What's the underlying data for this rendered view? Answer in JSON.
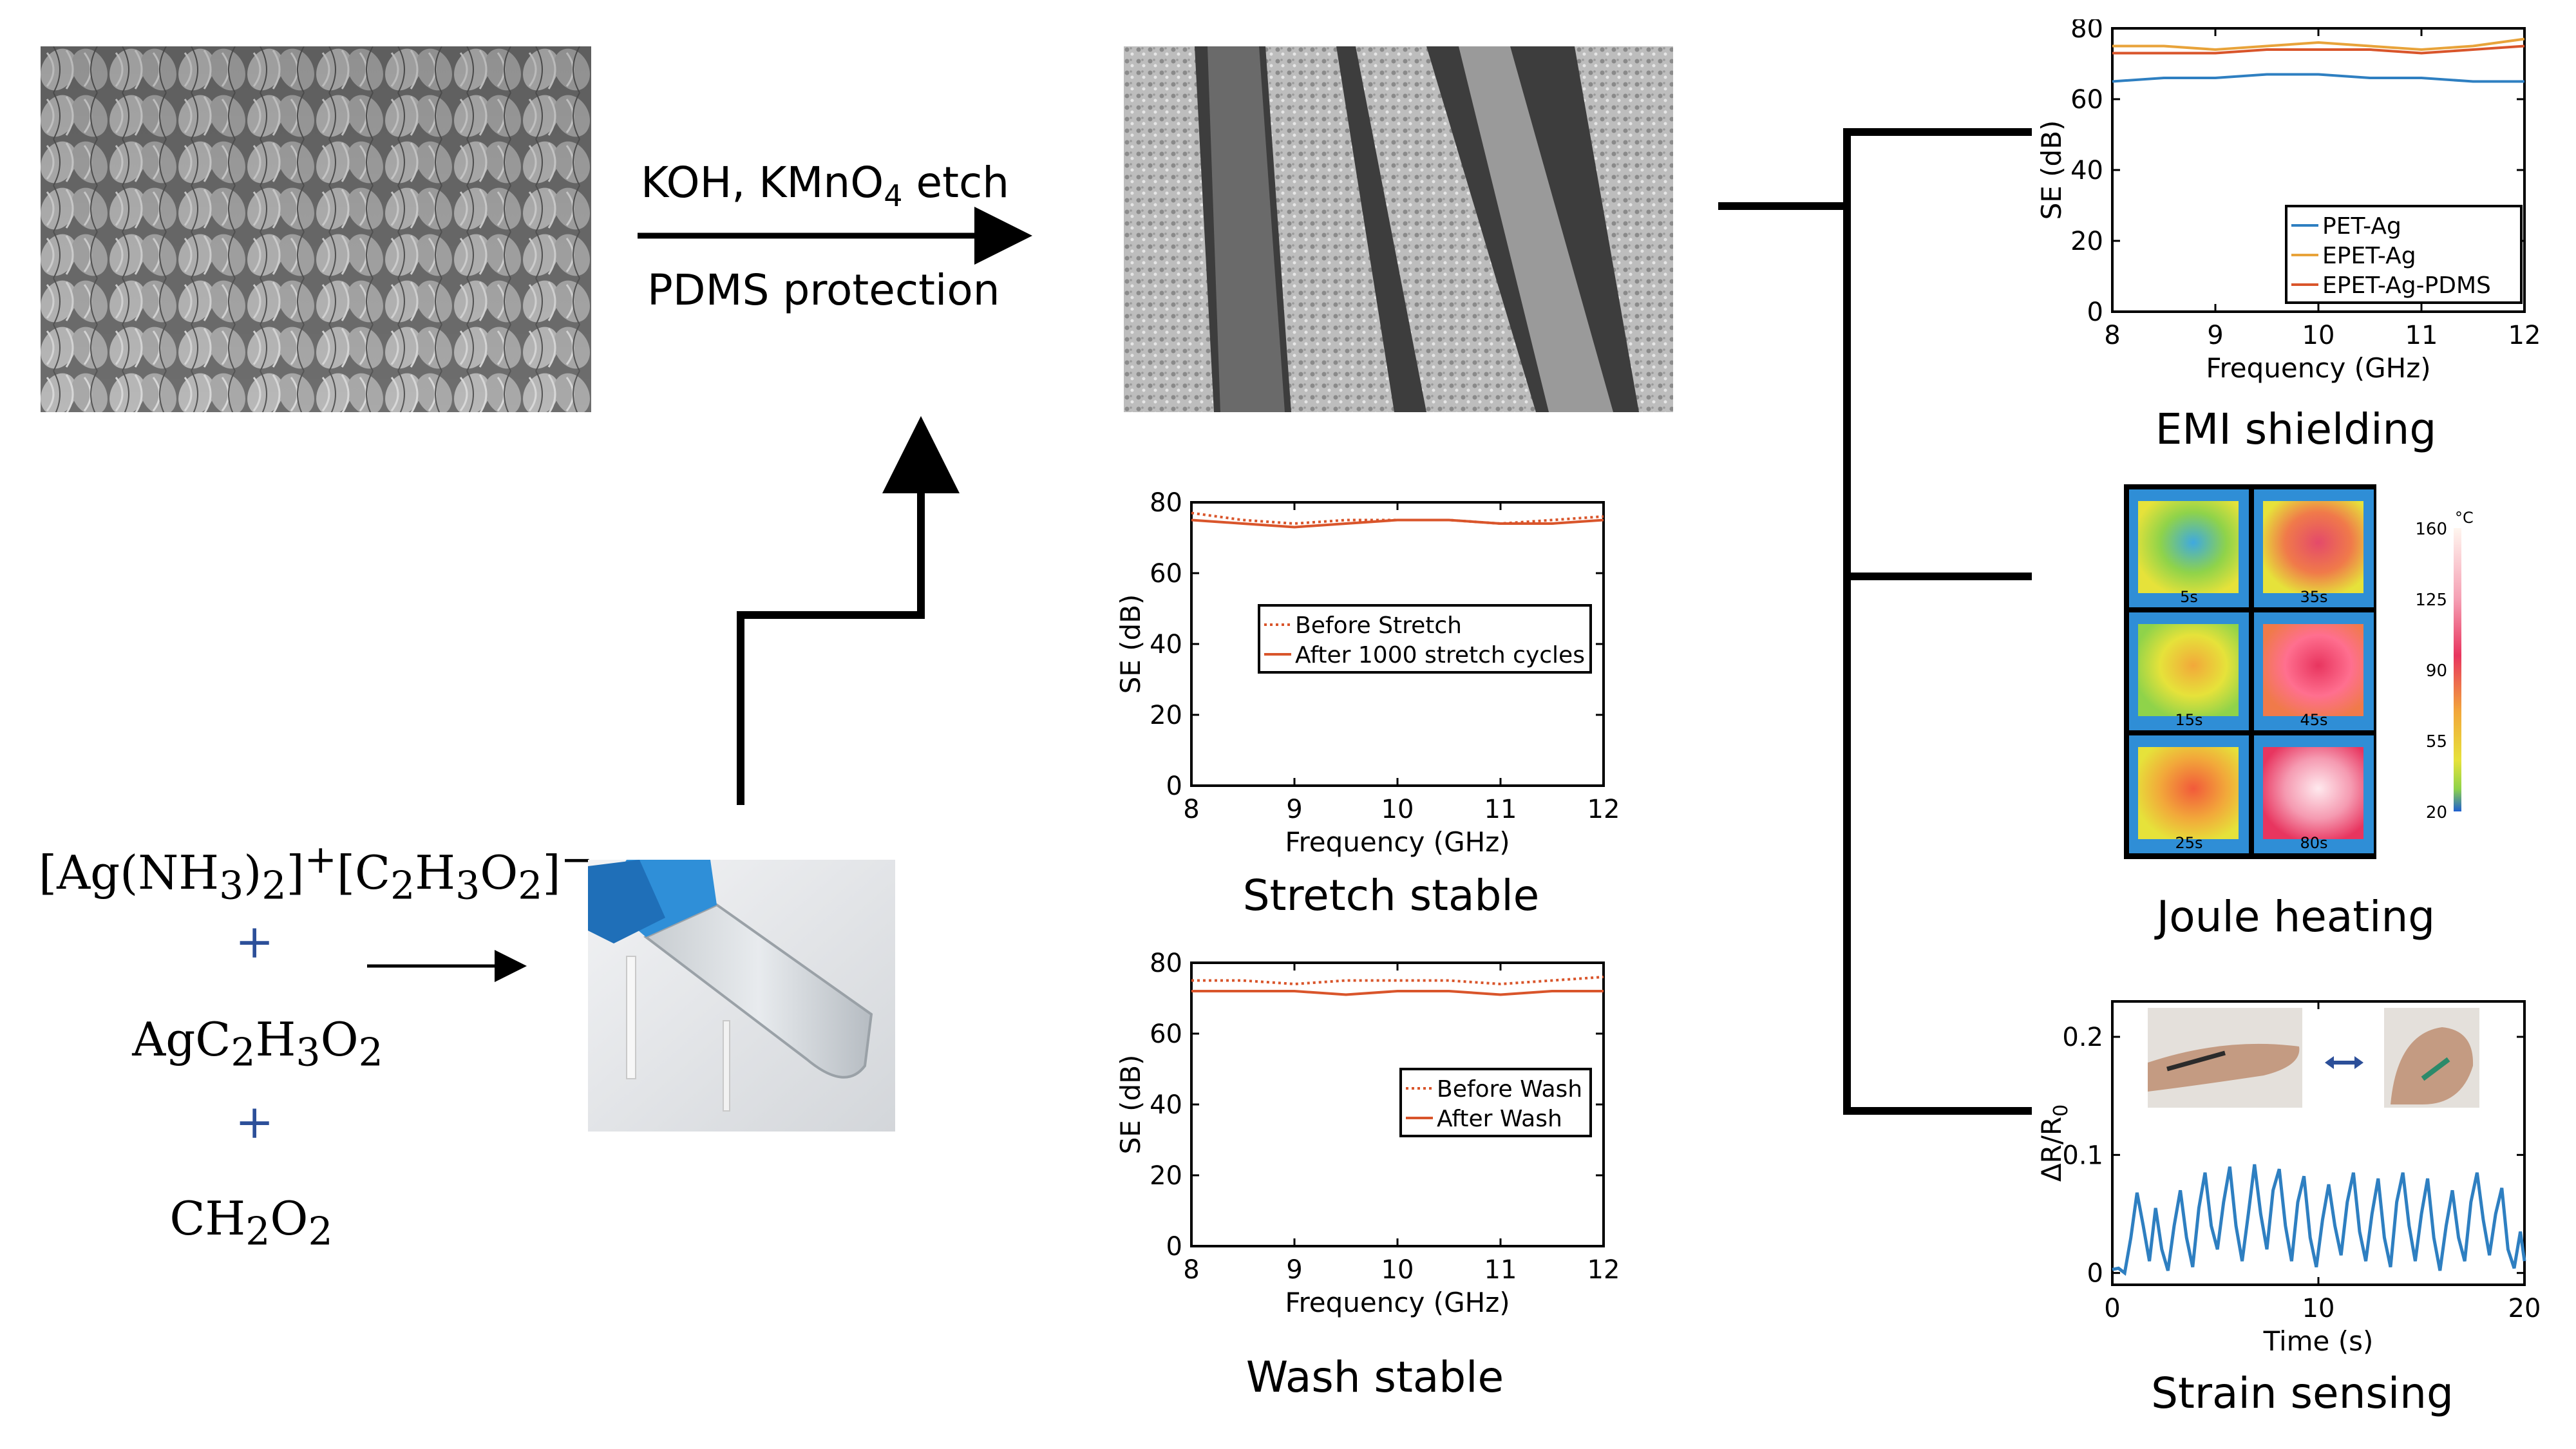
{
  "process": {
    "etch_label_pre": "KOH, KMnO",
    "etch_sub": "4",
    "etch_label_post": " etch",
    "protection_label": "PDMS protection"
  },
  "chemistry": {
    "formula1_html": "[Ag(NH<sub>3</sub>)<sub>2</sub>]<sup>+</sup>[C<sub>2</sub>H<sub>3</sub>O<sub>2</sub>]<sup>−</sup>",
    "formula2_html": "AgC<sub>2</sub>H<sub>3</sub>O<sub>2</sub>",
    "formula3_html": "CH<sub>2</sub>O<sub>2</sub>",
    "plus": "+"
  },
  "captions": {
    "stretch": "Stretch stable",
    "wash": "Wash stable",
    "emi": "EMI shielding",
    "joule": "Joule heating",
    "strain": "Strain sensing"
  },
  "thermal": {
    "unit": "°C",
    "scale_labels": [
      "160",
      "125",
      "90",
      "55",
      "20"
    ],
    "frame_times": [
      "5s",
      "35s",
      "15s",
      "45s",
      "25s",
      "80s"
    ]
  },
  "chart_data": [
    {
      "id": "emi",
      "type": "line",
      "xlabel": "Frequency (GHz)",
      "ylabel": "SE (dB)",
      "xlim": [
        8,
        12
      ],
      "ylim": [
        0,
        80
      ],
      "xticks": [
        8,
        9,
        10,
        11,
        12
      ],
      "yticks": [
        0,
        20,
        40,
        60,
        80
      ],
      "legend": "bottom-right",
      "series": [
        {
          "name": "PET-Ag",
          "color": "#2e7fc1",
          "dash": "solid",
          "x": [
            8,
            8.5,
            9,
            9.5,
            10,
            10.5,
            11,
            11.5,
            12
          ],
          "y": [
            65,
            66,
            66,
            67,
            67,
            66,
            66,
            65,
            65
          ]
        },
        {
          "name": "EPET-Ag",
          "color": "#e8a33a",
          "dash": "solid",
          "x": [
            8,
            8.5,
            9,
            9.5,
            10,
            10.5,
            11,
            11.5,
            12
          ],
          "y": [
            75,
            75,
            74,
            75,
            76,
            75,
            74,
            75,
            77
          ]
        },
        {
          "name": "EPET-Ag-PDMS",
          "color": "#d9552b",
          "dash": "solid",
          "x": [
            8,
            8.5,
            9,
            9.5,
            10,
            10.5,
            11,
            11.5,
            12
          ],
          "y": [
            73,
            73,
            73,
            74,
            74,
            74,
            73,
            74,
            75
          ]
        }
      ]
    },
    {
      "id": "stretch",
      "type": "line",
      "xlabel": "Frequency (GHz)",
      "ylabel": "SE (dB)",
      "xlim": [
        8,
        12
      ],
      "ylim": [
        0,
        80
      ],
      "xticks": [
        8,
        9,
        10,
        11,
        12
      ],
      "yticks": [
        0,
        20,
        40,
        60,
        80
      ],
      "legend": "center",
      "series": [
        {
          "name": "Before Stretch",
          "color": "#d9552b",
          "dash": "dotted",
          "x": [
            8,
            8.5,
            9,
            9.5,
            10,
            10.5,
            11,
            11.5,
            12
          ],
          "y": [
            77,
            75,
            74,
            75,
            75,
            75,
            74,
            75,
            76
          ]
        },
        {
          "name": "After 1000 stretch cycles",
          "color": "#d9552b",
          "dash": "solid",
          "x": [
            8,
            8.5,
            9,
            9.5,
            10,
            10.5,
            11,
            11.5,
            12
          ],
          "y": [
            75,
            74,
            73,
            74,
            75,
            75,
            74,
            74,
            75
          ]
        }
      ]
    },
    {
      "id": "wash",
      "type": "line",
      "xlabel": "Frequency (GHz)",
      "ylabel": "SE (dB)",
      "xlim": [
        8,
        12
      ],
      "ylim": [
        0,
        80
      ],
      "xticks": [
        8,
        9,
        10,
        11,
        12
      ],
      "yticks": [
        0,
        20,
        40,
        60,
        80
      ],
      "legend": "right",
      "series": [
        {
          "name": "Before Wash",
          "color": "#d9552b",
          "dash": "dotted",
          "x": [
            8,
            8.5,
            9,
            9.5,
            10,
            10.5,
            11,
            11.5,
            12
          ],
          "y": [
            75,
            75,
            74,
            75,
            75,
            75,
            74,
            75,
            76
          ]
        },
        {
          "name": "After Wash",
          "color": "#d9552b",
          "dash": "solid",
          "x": [
            8,
            8.5,
            9,
            9.5,
            10,
            10.5,
            11,
            11.5,
            12
          ],
          "y": [
            72,
            72,
            72,
            71,
            72,
            72,
            71,
            72,
            72
          ]
        }
      ]
    },
    {
      "id": "strain",
      "type": "line",
      "xlabel": "Time (s)",
      "ylabel": "ΔR/R",
      "ylabel_sub": "0",
      "xlim": [
        0,
        20
      ],
      "ylim": [
        -0.01,
        0.23
      ],
      "xticks": [
        0,
        10,
        20
      ],
      "yticks": [
        0,
        0.1,
        0.2
      ],
      "ytick_labels": [
        "0",
        "0.1",
        "0.2"
      ],
      "series": [
        {
          "name": "",
          "color": "#2e7fc1",
          "dash": "solid",
          "x": [
            0,
            0.3,
            0.6,
            0.9,
            1.2,
            1.5,
            1.8,
            2.1,
            2.4,
            2.7,
            3.0,
            3.3,
            3.6,
            3.9,
            4.2,
            4.5,
            4.8,
            5.1,
            5.4,
            5.7,
            6.0,
            6.3,
            6.6,
            6.9,
            7.2,
            7.5,
            7.8,
            8.1,
            8.4,
            8.7,
            9.0,
            9.3,
            9.6,
            9.9,
            10.2,
            10.5,
            10.8,
            11.1,
            11.4,
            11.7,
            12.0,
            12.3,
            12.6,
            12.9,
            13.2,
            13.5,
            13.8,
            14.1,
            14.4,
            14.7,
            15.0,
            15.3,
            15.6,
            15.9,
            16.2,
            16.5,
            16.8,
            17.1,
            17.4,
            17.7,
            18.0,
            18.3,
            18.6,
            18.9,
            19.2,
            19.5,
            19.8,
            20.0
          ],
          "y": [
            0.003,
            0.004,
            0.0,
            0.03,
            0.068,
            0.04,
            0.01,
            0.055,
            0.02,
            0.002,
            0.04,
            0.07,
            0.03,
            0.005,
            0.055,
            0.085,
            0.04,
            0.02,
            0.06,
            0.09,
            0.04,
            0.01,
            0.05,
            0.092,
            0.05,
            0.02,
            0.07,
            0.088,
            0.04,
            0.01,
            0.06,
            0.082,
            0.03,
            0.005,
            0.045,
            0.075,
            0.04,
            0.015,
            0.06,
            0.085,
            0.035,
            0.01,
            0.05,
            0.08,
            0.03,
            0.005,
            0.06,
            0.085,
            0.04,
            0.01,
            0.05,
            0.08,
            0.03,
            0.002,
            0.04,
            0.07,
            0.03,
            0.01,
            0.06,
            0.085,
            0.045,
            0.015,
            0.05,
            0.072,
            0.02,
            0.004,
            0.035,
            0.01
          ]
        }
      ]
    }
  ]
}
